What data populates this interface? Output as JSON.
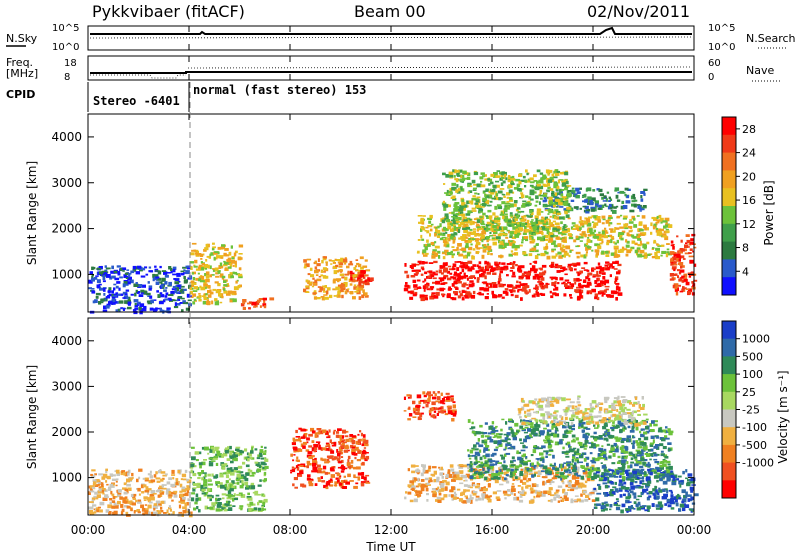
{
  "header": {
    "station": "Pykkvibaer (fitACF)",
    "beam": "Beam 00",
    "date": "02/Nov/2011"
  },
  "panels": {
    "noise": {
      "left_label": "N.Sky",
      "left_ticks": [
        "10^5",
        "10^0"
      ],
      "right_ticks": [
        "10^5",
        "10^0"
      ],
      "right_label": "N.Search"
    },
    "freq": {
      "left_label_1": "Freq.",
      "left_label_2": "[MHz]",
      "left_ticks": [
        "18",
        "8"
      ],
      "right_ticks": [
        "60",
        "0"
      ],
      "right_label": "Nave"
    },
    "cpid": {
      "label": "CPID",
      "mode_1": "Stereo -6401",
      "mode_2": "normal (fast stereo) 153"
    }
  },
  "chart_data": [
    {
      "type": "heatmap",
      "name": "power",
      "xlabel": "",
      "ylabel": "Slant Range [km]",
      "yticks": [
        "1000",
        "2000",
        "3000",
        "4000"
      ],
      "ylim": [
        180,
        4500
      ],
      "xlim_hours": [
        0,
        24
      ],
      "colorbar": {
        "label": "Power [dB]",
        "ticks": [
          "4",
          "8",
          "12",
          "16",
          "20",
          "24",
          "28"
        ],
        "range": [
          0,
          30
        ],
        "colors": [
          "#1010ff",
          "#2a5acb",
          "#2c7a40",
          "#3f9f4a",
          "#6cc23a",
          "#e8c020",
          "#f0a020",
          "#f07020",
          "#f03a18",
          "#ff0000"
        ]
      },
      "regions": [
        {
          "t0": 0.0,
          "t1": 4.0,
          "r0": 200,
          "r1": 1200,
          "level": 4
        },
        {
          "t0": 4.0,
          "t1": 6.0,
          "r0": 400,
          "r1": 1700,
          "level": 16
        },
        {
          "t0": 6.0,
          "t1": 7.2,
          "r0": 280,
          "r1": 500,
          "level": 24
        },
        {
          "t0": 8.5,
          "t1": 11.0,
          "r0": 500,
          "r1": 1400,
          "level": 20
        },
        {
          "t0": 10.3,
          "t1": 11.2,
          "r0": 800,
          "r1": 1100,
          "level": 28
        },
        {
          "t0": 12.5,
          "t1": 21.0,
          "r0": 500,
          "r1": 1300,
          "level": 28
        },
        {
          "t0": 13.0,
          "t1": 23.0,
          "r0": 1400,
          "r1": 2300,
          "level": 16
        },
        {
          "t0": 18.0,
          "t1": 22.0,
          "r0": 2400,
          "r1": 2900,
          "level": 8
        },
        {
          "t0": 14.0,
          "t1": 19.0,
          "r0": 1800,
          "r1": 3300,
          "level": 12
        },
        {
          "t0": 23.0,
          "t1": 24.0,
          "r0": 600,
          "r1": 1900,
          "level": 24
        }
      ]
    },
    {
      "type": "heatmap",
      "name": "velocity",
      "xlabel": "Time UT",
      "ylabel": "Slant Range [km]",
      "yticks": [
        "1000",
        "2000",
        "3000",
        "4000"
      ],
      "ylim": [
        180,
        4500
      ],
      "xticks": [
        "00:00",
        "04:00",
        "08:00",
        "12:00",
        "16:00",
        "20:00",
        "00:00"
      ],
      "xlim_hours": [
        0,
        24
      ],
      "colorbar": {
        "label": "Velocity [m s⁻¹]",
        "ticks": [
          "1000",
          "500",
          "100",
          "25",
          "-25",
          "-100",
          "-500",
          "-1000"
        ],
        "colors": [
          "#1a3ec8",
          "#2f6aa8",
          "#2f8a58",
          "#6cc23a",
          "#a8d860",
          "#c8c8c0",
          "#f0b040",
          "#f08020",
          "#f05020",
          "#ff0000"
        ]
      },
      "regions": [
        {
          "t0": 0.0,
          "t1": 4.0,
          "r0": 200,
          "r1": 1200,
          "velocity": -100
        },
        {
          "t0": 4.0,
          "t1": 7.0,
          "r0": 300,
          "r1": 1700,
          "velocity": 25
        },
        {
          "t0": 8.0,
          "t1": 11.0,
          "r0": 800,
          "r1": 2100,
          "velocity": -500
        },
        {
          "t0": 12.5,
          "t1": 14.5,
          "r0": 2300,
          "r1": 2900,
          "velocity": -500
        },
        {
          "t0": 12.5,
          "t1": 20.0,
          "r0": 500,
          "r1": 1300,
          "velocity": -100
        },
        {
          "t0": 15.0,
          "t1": 23.0,
          "r0": 1000,
          "r1": 2300,
          "velocity": 100
        },
        {
          "t0": 17.0,
          "t1": 22.0,
          "r0": 2200,
          "r1": 2800,
          "velocity": -25
        },
        {
          "t0": 20.0,
          "t1": 24.0,
          "r0": 300,
          "r1": 1200,
          "velocity": 500
        }
      ]
    }
  ]
}
